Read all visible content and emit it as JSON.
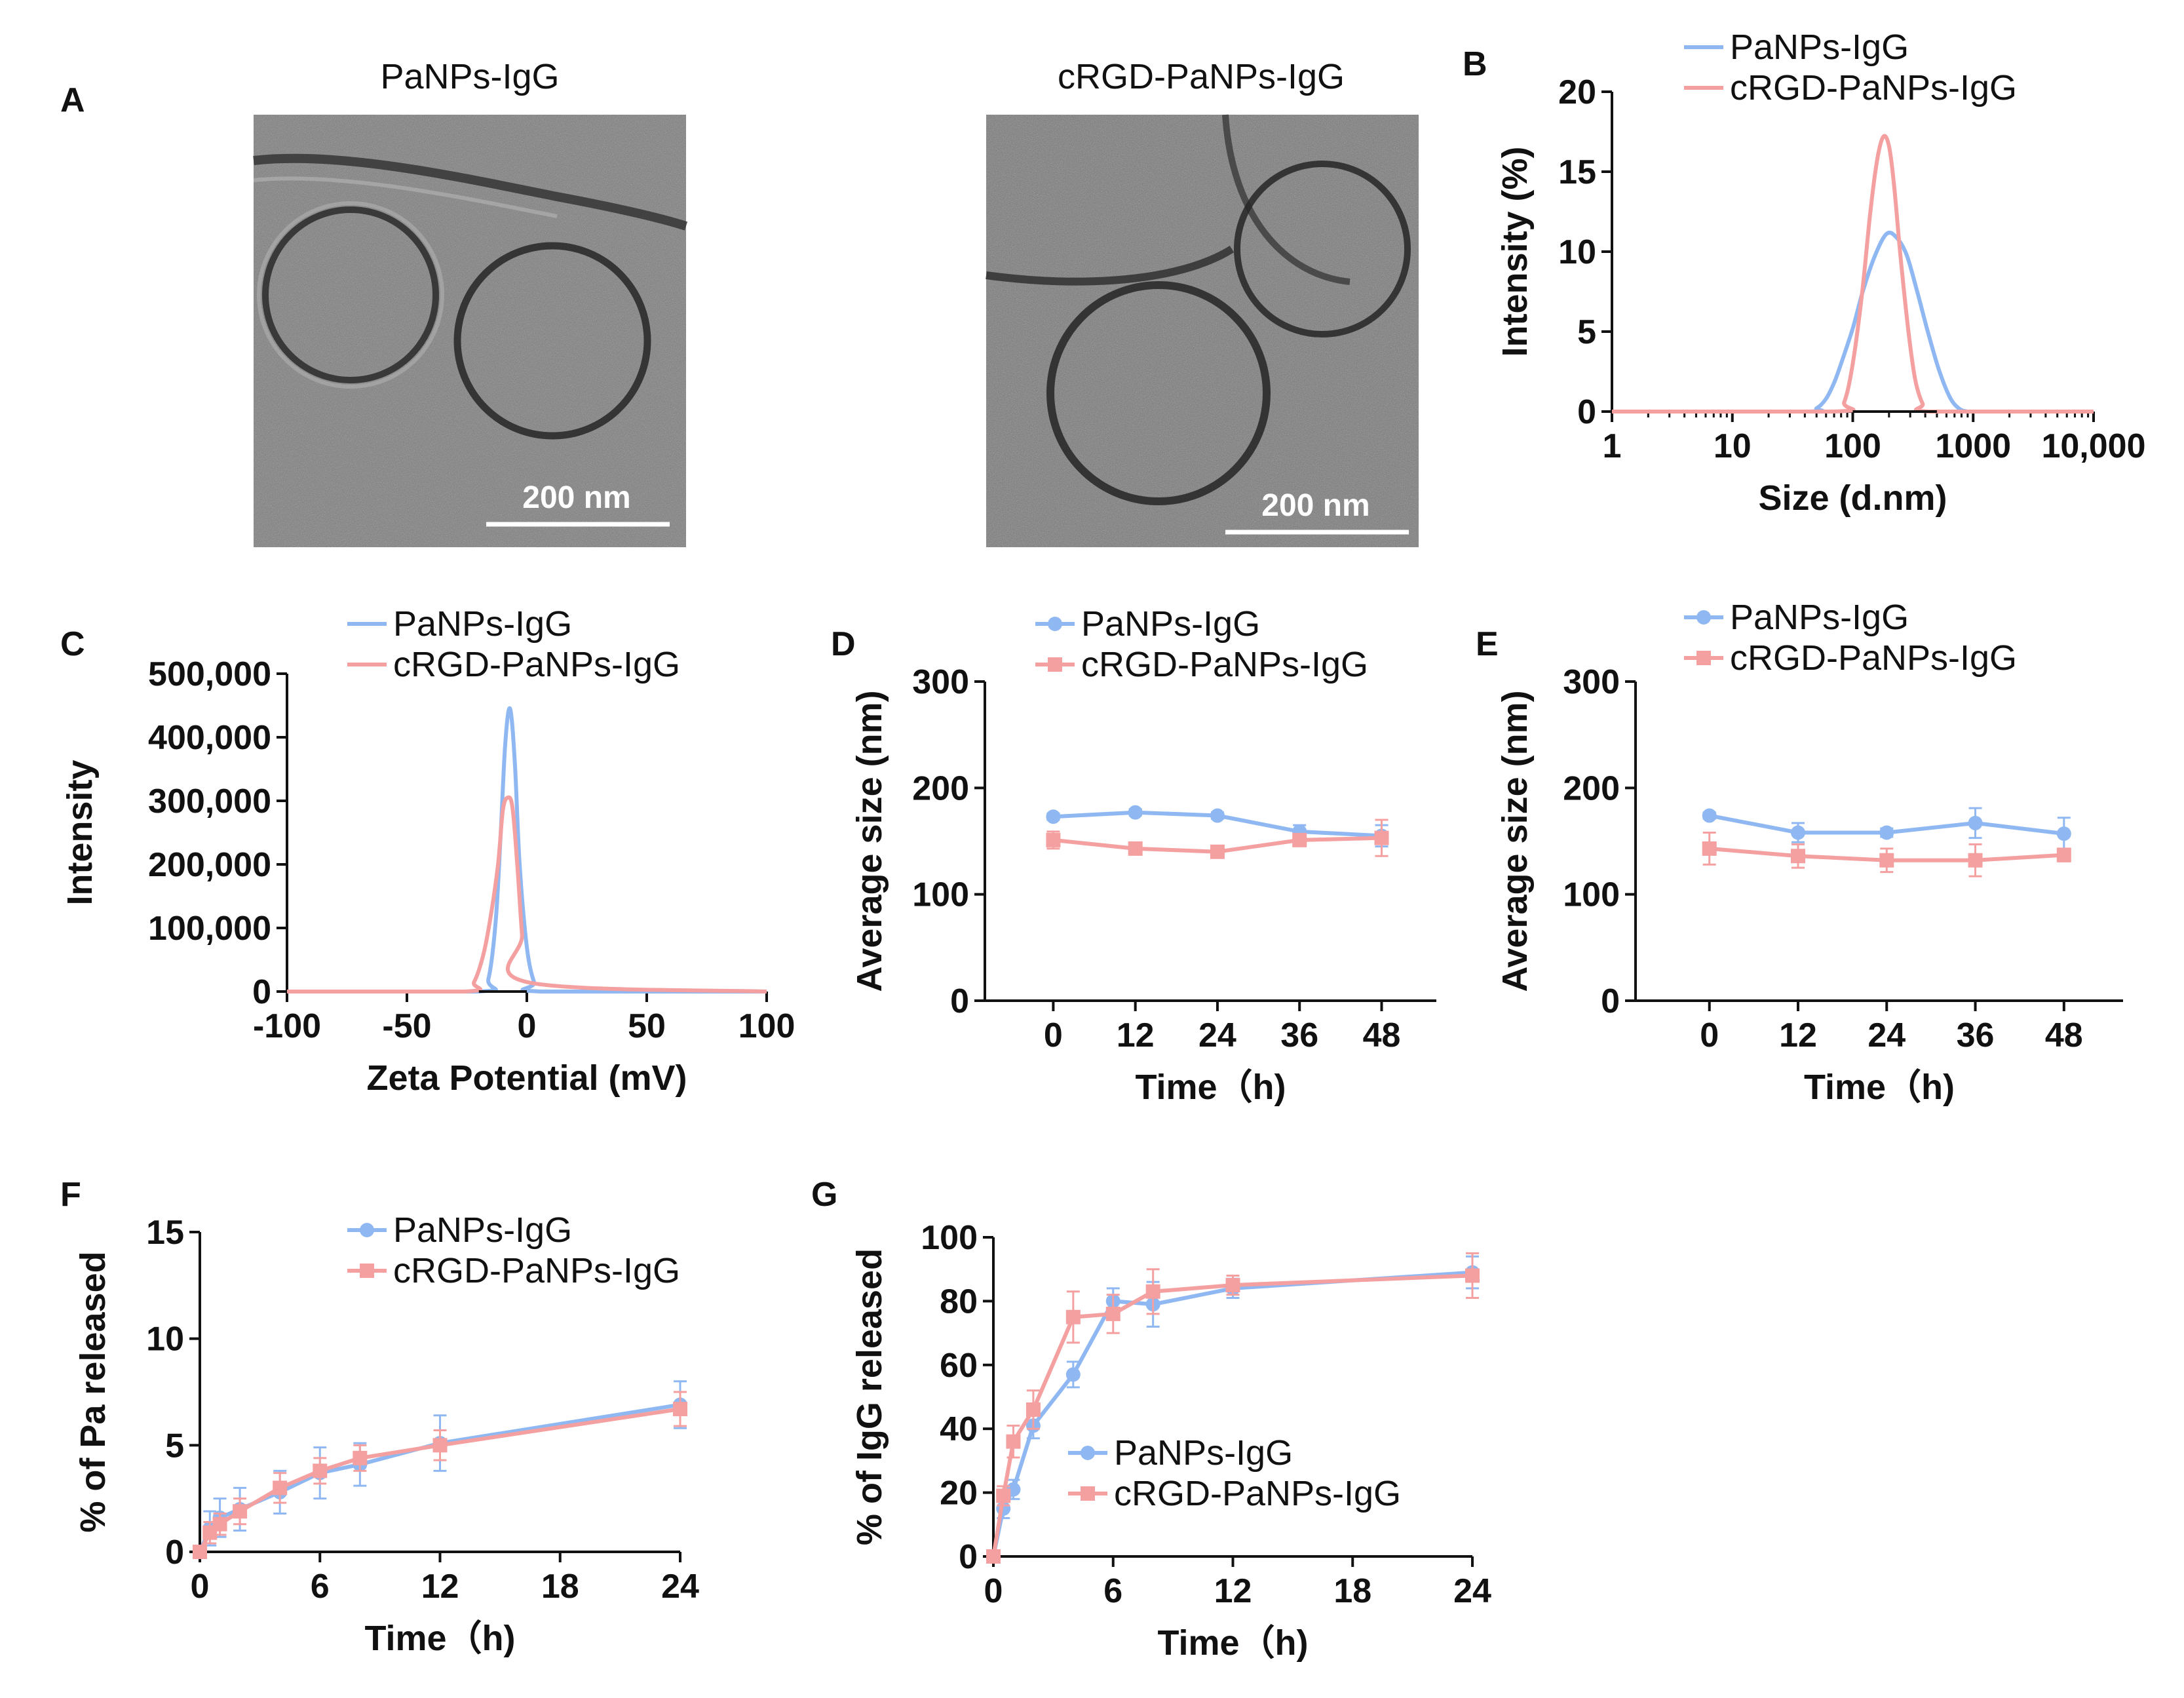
{
  "colors": {
    "blue": "#8fb8f2",
    "red": "#f4a0a0",
    "axis": "#111111"
  },
  "panels": {
    "A": {
      "letter": "A",
      "left_title": "PaNPs-IgG",
      "right_title": "cRGD-PaNPs-IgG",
      "left_scale": "200 nm",
      "right_scale": "200 nm"
    },
    "B": {
      "letter": "B"
    },
    "C": {
      "letter": "C"
    },
    "D": {
      "letter": "D"
    },
    "E": {
      "letter": "E"
    },
    "F": {
      "letter": "F"
    },
    "G": {
      "letter": "G"
    }
  },
  "chart_data": [
    {
      "id": "B",
      "type": "line",
      "xlabel": "Size (d.nm)",
      "ylabel": "Intensity (%)",
      "xscale": "log",
      "xlim": [
        1,
        10000
      ],
      "ylim": [
        0,
        20
      ],
      "xticks": [
        1,
        10,
        100,
        1000,
        10000
      ],
      "xticklabels": [
        "1",
        "10",
        "100",
        "1000",
        "10,000"
      ],
      "yticks": [
        0,
        5,
        10,
        15,
        20
      ],
      "yticklabels": [
        "0",
        "5",
        "10",
        "15",
        "20"
      ],
      "legend": [
        "PaNPs-IgG",
        "cRGD-PaNPs-IgG"
      ],
      "series": [
        {
          "name": "PaNPs-IgG",
          "color": "#8fb8f2",
          "x": [
            1,
            40,
            50,
            60,
            70,
            80,
            100,
            120,
            150,
            190,
            230,
            280,
            340,
            420,
            520,
            640,
            760,
            900,
            1200,
            10000
          ],
          "y": [
            0,
            0,
            0.2,
            0.8,
            1.8,
            3.0,
            5.2,
            7.4,
            9.6,
            11.1,
            10.9,
            9.8,
            7.6,
            5.0,
            2.6,
            0.9,
            0.2,
            0,
            0,
            0
          ]
        },
        {
          "name": "cRGD-PaNPs-IgG",
          "color": "#f4a0a0",
          "x": [
            1,
            70,
            85,
            100,
            120,
            140,
            160,
            180,
            200,
            220,
            250,
            290,
            330,
            380,
            440,
            10000
          ],
          "y": [
            0,
            0,
            0.6,
            3.0,
            7.5,
            12.5,
            15.8,
            17.2,
            16.6,
            14.2,
            9.6,
            5.0,
            2.0,
            0.5,
            0,
            0
          ]
        }
      ]
    },
    {
      "id": "C",
      "type": "line",
      "xlabel": "Zeta Potential (mV)",
      "ylabel": "Intensity",
      "xlim": [
        -100,
        100
      ],
      "ylim": [
        0,
        500000
      ],
      "xticks": [
        -100,
        -50,
        0,
        50,
        100
      ],
      "xticklabels": [
        "-100",
        "-50",
        "0",
        "50",
        "100"
      ],
      "yticks": [
        0,
        100000,
        200000,
        300000,
        400000,
        500000
      ],
      "yticklabels": [
        "0",
        "100,000",
        "200,000",
        "300,000",
        "400,000",
        "500,000"
      ],
      "legend": [
        "PaNPs-IgG",
        "cRGD-PaNPs-IgG"
      ],
      "series": [
        {
          "name": "PaNPs-IgG",
          "color": "#8fb8f2",
          "x": [
            -100,
            -20,
            -16,
            -13,
            -11,
            -9,
            -7,
            -5,
            -3,
            0,
            3,
            6,
            100
          ],
          "y": [
            0,
            0,
            20000,
            110000,
            240000,
            390000,
            445000,
            360000,
            200000,
            70000,
            15000,
            0,
            0
          ]
        },
        {
          "name": "cRGD-PaNPs-IgG",
          "color": "#f4a0a0",
          "x": [
            -100,
            -26,
            -22,
            -18,
            -15,
            -12,
            -10,
            -8,
            -6,
            -4,
            -2,
            0,
            100
          ],
          "y": [
            0,
            0,
            15000,
            60000,
            120000,
            200000,
            285000,
            305000,
            290000,
            200000,
            90000,
            15000,
            0
          ]
        }
      ]
    },
    {
      "id": "D",
      "type": "line",
      "xlabel": "Time（h)",
      "ylabel": "Average size (nm)",
      "xlim": [
        -10,
        56
      ],
      "ylim": [
        0,
        300
      ],
      "xticks": [
        0,
        12,
        24,
        36,
        48
      ],
      "xticklabels": [
        "0",
        "12",
        "24",
        "36",
        "48"
      ],
      "yticks": [
        0,
        100,
        200,
        300
      ],
      "yticklabels": [
        "0",
        "100",
        "200",
        "300"
      ],
      "legend": [
        "PaNPs-IgG",
        "cRGD-PaNPs-IgG"
      ],
      "series": [
        {
          "name": "PaNPs-IgG",
          "color": "#8fb8f2",
          "marker": "circle",
          "x": [
            0,
            12,
            24,
            36,
            48
          ],
          "y": [
            173,
            177,
            174,
            159,
            155
          ],
          "err": [
            3,
            3,
            3,
            6,
            10
          ]
        },
        {
          "name": "cRGD-PaNPs-IgG",
          "color": "#f4a0a0",
          "marker": "square",
          "x": [
            0,
            12,
            24,
            36,
            48
          ],
          "y": [
            151,
            143,
            140,
            151,
            153
          ],
          "err": [
            8,
            4,
            3,
            5,
            17
          ]
        }
      ]
    },
    {
      "id": "E",
      "type": "line",
      "xlabel": "Time（h)",
      "ylabel": "Average size (nm)",
      "xlim": [
        -10,
        56
      ],
      "ylim": [
        0,
        300
      ],
      "xticks": [
        0,
        12,
        24,
        36,
        48
      ],
      "xticklabels": [
        "0",
        "12",
        "24",
        "36",
        "48"
      ],
      "yticks": [
        0,
        100,
        200,
        300
      ],
      "yticklabels": [
        "0",
        "100",
        "200",
        "300"
      ],
      "legend": [
        "PaNPs-IgG",
        "cRGD-PaNPs-IgG"
      ],
      "series": [
        {
          "name": "PaNPs-IgG",
          "color": "#8fb8f2",
          "marker": "circle",
          "x": [
            0,
            12,
            24,
            36,
            48
          ],
          "y": [
            174,
            158,
            158,
            167,
            157
          ],
          "err": [
            3,
            9,
            4,
            14,
            15
          ]
        },
        {
          "name": "cRGD-PaNPs-IgG",
          "color": "#f4a0a0",
          "marker": "square",
          "x": [
            0,
            12,
            24,
            36,
            48
          ],
          "y": [
            143,
            136,
            132,
            132,
            137
          ],
          "err": [
            15,
            11,
            11,
            15,
            6
          ]
        }
      ]
    },
    {
      "id": "F",
      "type": "line",
      "xlabel": "Time（h)",
      "ylabel": "% of Pa released",
      "xlim": [
        0,
        24
      ],
      "ylim": [
        0,
        15
      ],
      "xticks": [
        0,
        6,
        12,
        18,
        24
      ],
      "xticklabels": [
        "0",
        "6",
        "12",
        "18",
        "24"
      ],
      "yticks": [
        0,
        5,
        10,
        15
      ],
      "yticklabels": [
        "0",
        "5",
        "10",
        "15"
      ],
      "legend": [
        "PaNPs-IgG",
        "cRGD-PaNPs-IgG"
      ],
      "series": [
        {
          "name": "PaNPs-IgG",
          "color": "#8fb8f2",
          "marker": "circle",
          "x": [
            0,
            0.5,
            1,
            2,
            4,
            6,
            8,
            12,
            24
          ],
          "y": [
            0,
            1.1,
            1.6,
            2.0,
            2.8,
            3.7,
            4.1,
            5.1,
            6.9
          ],
          "err": [
            0,
            0.8,
            0.9,
            1.0,
            1.0,
            1.2,
            1.0,
            1.3,
            1.1
          ]
        },
        {
          "name": "cRGD-PaNPs-IgG",
          "color": "#f4a0a0",
          "marker": "square",
          "x": [
            0,
            0.5,
            1,
            2,
            4,
            6,
            8,
            12,
            24
          ],
          "y": [
            0,
            0.9,
            1.3,
            1.9,
            3.0,
            3.8,
            4.4,
            5.0,
            6.7
          ],
          "err": [
            0,
            0.5,
            0.5,
            0.6,
            0.7,
            0.6,
            0.6,
            0.7,
            0.8
          ]
        }
      ]
    },
    {
      "id": "G",
      "type": "line",
      "xlabel": "Time（h)",
      "ylabel": "% of IgG released",
      "xlim": [
        0,
        24
      ],
      "ylim": [
        0,
        100
      ],
      "xticks": [
        0,
        6,
        12,
        18,
        24
      ],
      "xticklabels": [
        "0",
        "6",
        "12",
        "18",
        "24"
      ],
      "yticks": [
        0,
        20,
        40,
        60,
        80,
        100
      ],
      "yticklabels": [
        "0",
        "20",
        "40",
        "60",
        "80",
        "100"
      ],
      "legend": [
        "PaNPs-IgG",
        "cRGD-PaNPs-IgG"
      ],
      "series": [
        {
          "name": "PaNPs-IgG",
          "color": "#8fb8f2",
          "marker": "circle",
          "x": [
            0,
            0.5,
            1,
            2,
            4,
            6,
            8,
            12,
            24
          ],
          "y": [
            0,
            15,
            21,
            41,
            57,
            80,
            79,
            84,
            89
          ],
          "err": [
            0,
            3,
            3,
            4,
            4,
            4,
            7,
            3,
            5
          ]
        },
        {
          "name": "cRGD-PaNPs-IgG",
          "color": "#f4a0a0",
          "marker": "square",
          "x": [
            0,
            0.5,
            1,
            2,
            4,
            6,
            8,
            12,
            24
          ],
          "y": [
            0,
            19,
            36,
            46,
            75,
            76,
            83,
            85,
            88
          ],
          "err": [
            0,
            3,
            5,
            6,
            8,
            6,
            7,
            3,
            7
          ]
        }
      ]
    }
  ]
}
